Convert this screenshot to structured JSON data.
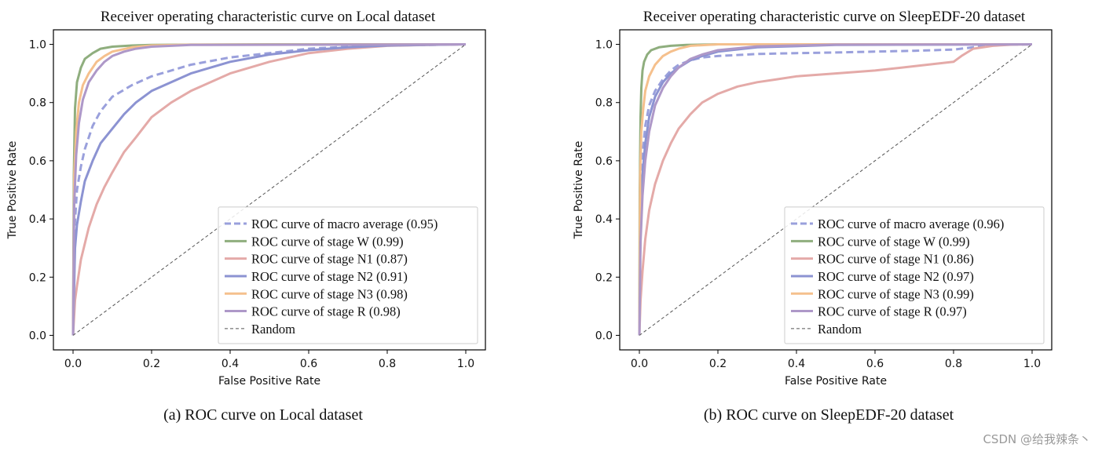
{
  "chart_data": [
    {
      "type": "line",
      "title": "Receiver operating characteristic curve on Local dataset",
      "xlabel": "False Positive Rate",
      "ylabel": "True Positive Rate",
      "xlim": [
        -0.05,
        1.05
      ],
      "ylim": [
        -0.05,
        1.05
      ],
      "xticks": [
        "0.0",
        "0.2",
        "0.4",
        "0.6",
        "0.8",
        "1.0"
      ],
      "yticks": [
        "0.0",
        "0.2",
        "0.4",
        "0.6",
        "0.8",
        "1.0"
      ],
      "legend_position": "lower-right",
      "caption": "(a)  ROC curve on Local dataset",
      "series": [
        {
          "name": "ROC curve of  macro average (0.95)",
          "color": "#9aa0dc",
          "dash": true,
          "x": [
            0,
            0.003,
            0.01,
            0.02,
            0.03,
            0.05,
            0.07,
            0.1,
            0.15,
            0.2,
            0.3,
            0.4,
            0.5,
            0.6,
            0.7,
            0.8,
            0.9,
            1.0
          ],
          "y": [
            0,
            0.35,
            0.5,
            0.58,
            0.64,
            0.72,
            0.77,
            0.82,
            0.86,
            0.89,
            0.93,
            0.955,
            0.97,
            0.985,
            0.992,
            0.996,
            0.998,
            1.0
          ]
        },
        {
          "name": "ROC curve of  stage W (0.99)",
          "color": "#8fae7e",
          "dash": false,
          "x": [
            0,
            0.002,
            0.005,
            0.01,
            0.02,
            0.03,
            0.05,
            0.07,
            0.1,
            0.15,
            0.2,
            0.3,
            0.5,
            1.0
          ],
          "y": [
            0,
            0.55,
            0.78,
            0.87,
            0.92,
            0.95,
            0.97,
            0.985,
            0.992,
            0.996,
            0.998,
            0.999,
            1.0,
            1.0
          ]
        },
        {
          "name": "ROC curve of  stage N1 (0.87)",
          "color": "#e4aaa8",
          "dash": false,
          "x": [
            0,
            0.005,
            0.01,
            0.02,
            0.04,
            0.06,
            0.08,
            0.1,
            0.13,
            0.16,
            0.2,
            0.25,
            0.3,
            0.4,
            0.5,
            0.6,
            0.7,
            0.8,
            0.9,
            1.0
          ],
          "y": [
            0,
            0.12,
            0.17,
            0.26,
            0.37,
            0.45,
            0.51,
            0.56,
            0.63,
            0.68,
            0.75,
            0.8,
            0.84,
            0.9,
            0.94,
            0.97,
            0.985,
            0.995,
            0.998,
            1.0
          ]
        },
        {
          "name": "ROC curve of  stage N2 (0.91)",
          "color": "#8c93d2",
          "dash": false,
          "x": [
            0,
            0.005,
            0.01,
            0.02,
            0.03,
            0.05,
            0.07,
            0.1,
            0.13,
            0.16,
            0.2,
            0.25,
            0.3,
            0.4,
            0.5,
            0.6,
            0.7,
            0.8,
            1.0
          ],
          "y": [
            0,
            0.3,
            0.38,
            0.46,
            0.53,
            0.6,
            0.66,
            0.71,
            0.76,
            0.8,
            0.84,
            0.87,
            0.9,
            0.94,
            0.965,
            0.98,
            0.99,
            0.996,
            1.0
          ]
        },
        {
          "name": "ROC curve of  stage N3 (0.98)",
          "color": "#f5c08d",
          "dash": false,
          "x": [
            0,
            0.003,
            0.008,
            0.015,
            0.025,
            0.04,
            0.06,
            0.08,
            0.1,
            0.15,
            0.2,
            0.3,
            1.0
          ],
          "y": [
            0,
            0.55,
            0.7,
            0.8,
            0.86,
            0.9,
            0.94,
            0.96,
            0.975,
            0.99,
            0.996,
            0.999,
            1.0
          ]
        },
        {
          "name": "ROC curve of  stage R (0.98)",
          "color": "#ae98c8",
          "dash": false,
          "x": [
            0,
            0.003,
            0.008,
            0.015,
            0.025,
            0.04,
            0.06,
            0.08,
            0.1,
            0.13,
            0.16,
            0.2,
            0.3,
            1.0
          ],
          "y": [
            0,
            0.45,
            0.62,
            0.73,
            0.81,
            0.87,
            0.91,
            0.94,
            0.96,
            0.975,
            0.985,
            0.992,
            0.998,
            1.0
          ]
        },
        {
          "name": "Random",
          "color": "#555555",
          "dash": true,
          "thin": true,
          "x": [
            0,
            1.0
          ],
          "y": [
            0,
            1.0
          ]
        }
      ]
    },
    {
      "type": "line",
      "title": "Receiver operating characteristic curve on SleepEDF-20 dataset",
      "xlabel": "False Positive Rate",
      "ylabel": "True Positive Rate",
      "xlim": [
        -0.05,
        1.05
      ],
      "ylim": [
        -0.05,
        1.05
      ],
      "xticks": [
        "0.0",
        "0.2",
        "0.4",
        "0.6",
        "0.8",
        "1.0"
      ],
      "yticks": [
        "0.0",
        "0.2",
        "0.4",
        "0.6",
        "0.8",
        "1.0"
      ],
      "legend_position": "lower-right",
      "caption": "(b)  ROC curve on SleepEDF-20 dataset",
      "series": [
        {
          "name": "ROC curve of  macro average (0.96)",
          "color": "#9aa0dc",
          "dash": true,
          "x": [
            0,
            0.003,
            0.008,
            0.015,
            0.025,
            0.04,
            0.06,
            0.08,
            0.1,
            0.13,
            0.16,
            0.2,
            0.3,
            0.4,
            0.5,
            0.6,
            0.7,
            0.8,
            0.85,
            0.9,
            1.0
          ],
          "y": [
            0,
            0.45,
            0.62,
            0.72,
            0.79,
            0.84,
            0.88,
            0.91,
            0.93,
            0.945,
            0.955,
            0.96,
            0.967,
            0.97,
            0.972,
            0.975,
            0.978,
            0.982,
            0.99,
            0.998,
            1.0
          ]
        },
        {
          "name": "ROC curve of  stage W (0.99)",
          "color": "#8fae7e",
          "dash": false,
          "x": [
            0,
            0.001,
            0.003,
            0.005,
            0.008,
            0.012,
            0.02,
            0.03,
            0.05,
            0.08,
            0.12,
            0.2,
            1.0
          ],
          "y": [
            0,
            0.5,
            0.75,
            0.85,
            0.91,
            0.94,
            0.965,
            0.98,
            0.99,
            0.995,
            0.998,
            1.0,
            1.0
          ]
        },
        {
          "name": "ROC curve of  stage N1 (0.86)",
          "color": "#e4aaa8",
          "dash": false,
          "x": [
            0,
            0.003,
            0.008,
            0.015,
            0.025,
            0.04,
            0.06,
            0.08,
            0.1,
            0.13,
            0.16,
            0.2,
            0.25,
            0.3,
            0.35,
            0.4,
            0.5,
            0.6,
            0.7,
            0.8,
            0.82,
            0.85,
            0.9,
            0.95,
            1.0
          ],
          "y": [
            0,
            0.12,
            0.22,
            0.33,
            0.43,
            0.52,
            0.6,
            0.66,
            0.71,
            0.76,
            0.8,
            0.83,
            0.855,
            0.87,
            0.88,
            0.89,
            0.9,
            0.91,
            0.925,
            0.94,
            0.96,
            0.985,
            0.995,
            0.999,
            1.0
          ]
        },
        {
          "name": "ROC curve of  stage N2 (0.97)",
          "color": "#8c93d2",
          "dash": false,
          "x": [
            0,
            0.003,
            0.008,
            0.015,
            0.025,
            0.04,
            0.06,
            0.08,
            0.1,
            0.13,
            0.16,
            0.2,
            0.3,
            0.5,
            1.0
          ],
          "y": [
            0,
            0.4,
            0.55,
            0.66,
            0.75,
            0.82,
            0.87,
            0.9,
            0.92,
            0.945,
            0.96,
            0.975,
            0.99,
            0.998,
            1.0
          ]
        },
        {
          "name": "ROC curve of  stage N3 (0.99)",
          "color": "#f5c08d",
          "dash": false,
          "x": [
            0,
            0.002,
            0.005,
            0.01,
            0.015,
            0.025,
            0.04,
            0.06,
            0.08,
            0.1,
            0.13,
            0.2,
            1.0
          ],
          "y": [
            0,
            0.55,
            0.7,
            0.78,
            0.84,
            0.89,
            0.93,
            0.96,
            0.975,
            0.985,
            0.995,
            1.0,
            1.0
          ]
        },
        {
          "name": "ROC curve of  stage R (0.97)",
          "color": "#ae98c8",
          "dash": false,
          "x": [
            0,
            0.003,
            0.008,
            0.015,
            0.025,
            0.04,
            0.06,
            0.08,
            0.1,
            0.13,
            0.16,
            0.2,
            0.3,
            0.5,
            1.0
          ],
          "y": [
            0,
            0.32,
            0.48,
            0.6,
            0.7,
            0.79,
            0.85,
            0.89,
            0.92,
            0.95,
            0.965,
            0.98,
            0.993,
            0.999,
            1.0
          ]
        },
        {
          "name": "Random",
          "color": "#555555",
          "dash": true,
          "thin": true,
          "x": [
            0,
            1.0
          ],
          "y": [
            0,
            1.0
          ]
        }
      ]
    }
  ],
  "watermark": "CSDN @给我辣条丶"
}
